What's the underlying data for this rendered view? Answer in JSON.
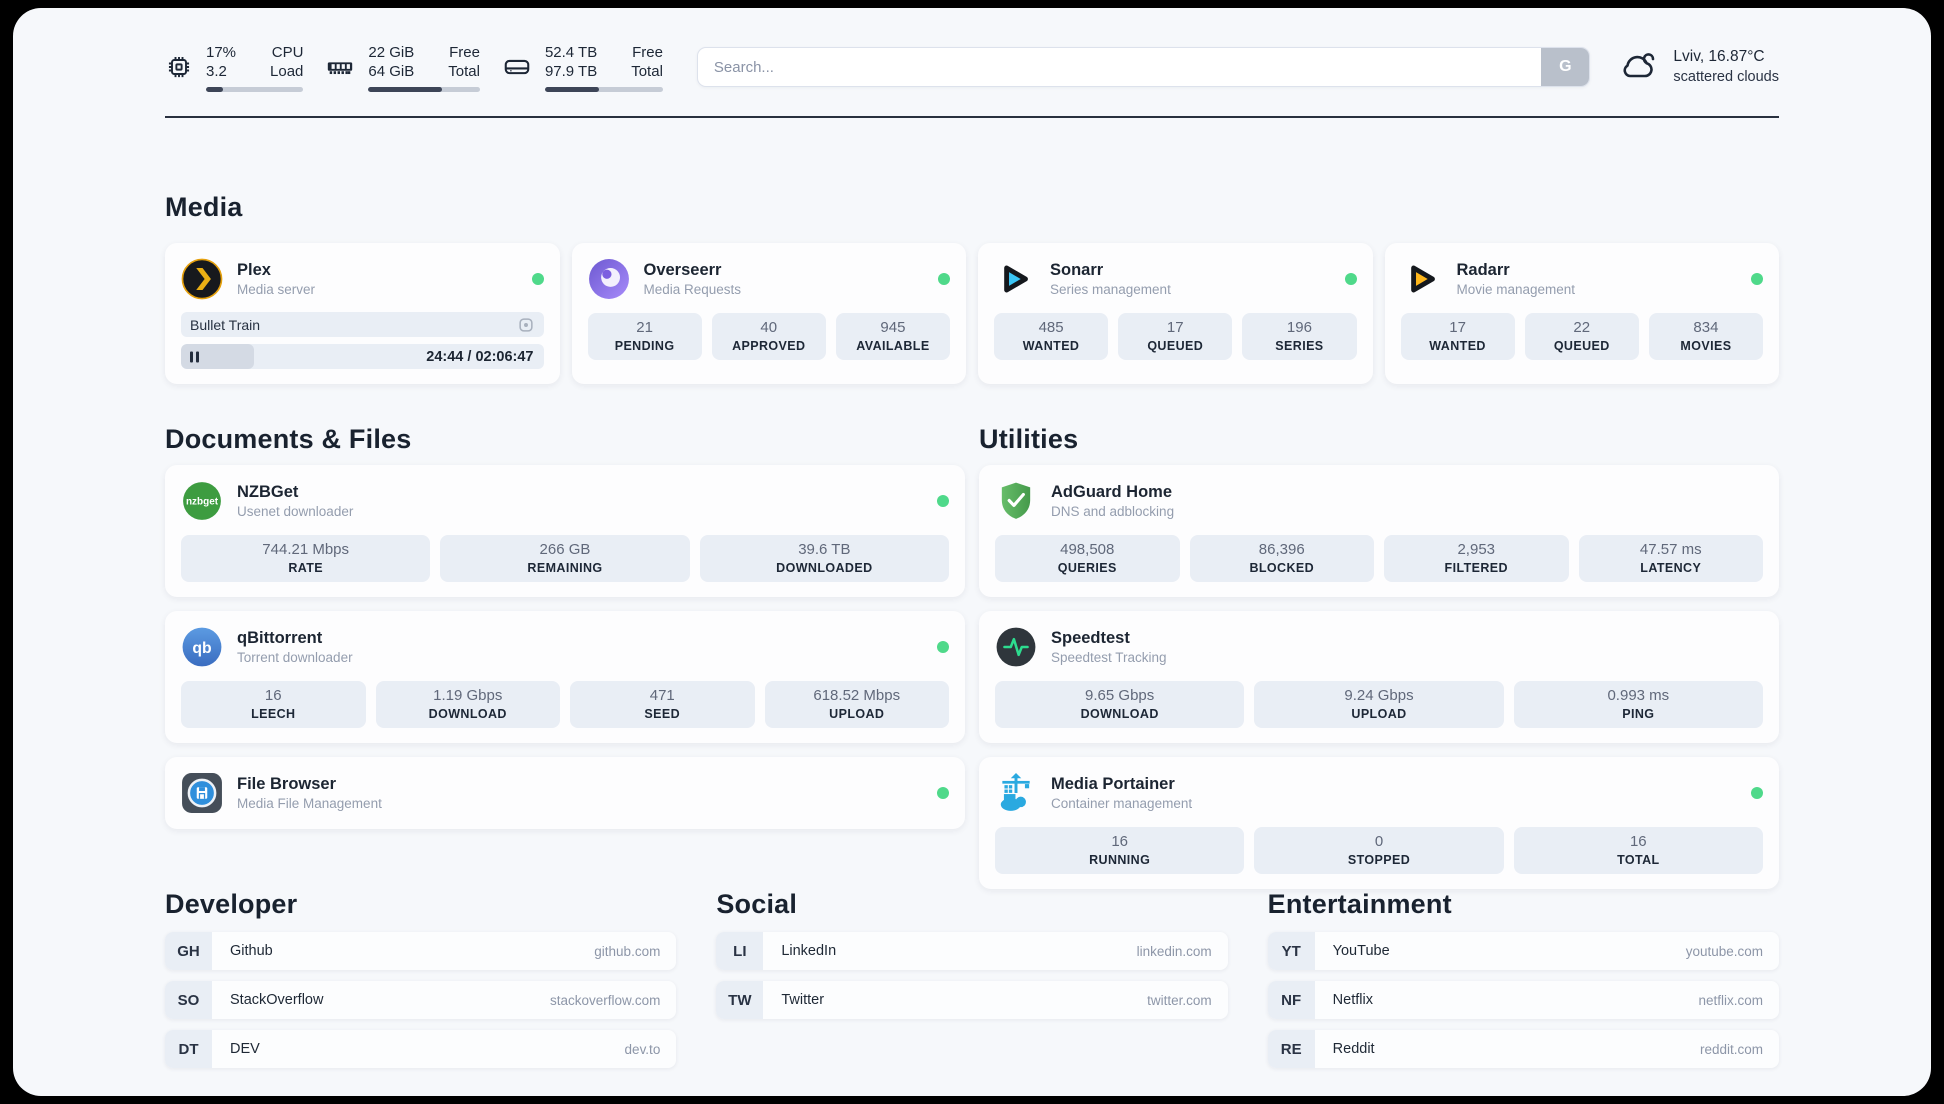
{
  "topbar": {
    "cpu": {
      "icon": "cpu-icon",
      "value1": "17%",
      "value2": "3.2",
      "label1": "CPU",
      "label2": "Load",
      "progress": 17
    },
    "memory": {
      "icon": "ram-icon",
      "value1": "22 GiB",
      "value2": "64 GiB",
      "label1": "Free",
      "label2": "Total",
      "progress": 66
    },
    "disk": {
      "icon": "disk-icon",
      "value1": "52.4 TB",
      "value2": "97.9 TB",
      "label1": "Free",
      "label2": "Total",
      "progress": 46
    },
    "search": {
      "placeholder": "Search...",
      "button_label": "G"
    },
    "weather": {
      "icon": "cloud-icon",
      "location_temp": "Lviv, 16.87°C",
      "condition": "scattered clouds"
    }
  },
  "colors": {
    "accent_green": "#4fd98a",
    "statbox": "#e9eef5",
    "text_dark": "#1d2736"
  },
  "groups": {
    "media": {
      "title": "Media",
      "apps": [
        {
          "icon": "plex-icon",
          "name": "Plex",
          "desc": "Media server",
          "online": true,
          "player": {
            "title": "Bullet Train",
            "elapsed": "24:44",
            "duration": "02:06:47",
            "progress": 20
          }
        },
        {
          "icon": "overseerr-icon",
          "name": "Overseerr",
          "desc": "Media Requests",
          "online": true,
          "stats": [
            {
              "value": "21",
              "label": "PENDING"
            },
            {
              "value": "40",
              "label": "APPROVED"
            },
            {
              "value": "945",
              "label": "AVAILABLE"
            }
          ]
        },
        {
          "icon": "sonarr-icon",
          "name": "Sonarr",
          "desc": "Series management",
          "online": true,
          "stats": [
            {
              "value": "485",
              "label": "WANTED"
            },
            {
              "value": "17",
              "label": "QUEUED"
            },
            {
              "value": "196",
              "label": "SERIES"
            }
          ]
        },
        {
          "icon": "radarr-icon",
          "name": "Radarr",
          "desc": "Movie management",
          "online": true,
          "stats": [
            {
              "value": "17",
              "label": "WANTED"
            },
            {
              "value": "22",
              "label": "QUEUED"
            },
            {
              "value": "834",
              "label": "MOVIES"
            }
          ]
        }
      ]
    },
    "documents": {
      "title": "Documents & Files",
      "apps": [
        {
          "icon": "nzbget-icon",
          "name": "NZBGet",
          "desc": "Usenet downloader",
          "online": true,
          "stats": [
            {
              "value": "744.21 Mbps",
              "label": "RATE"
            },
            {
              "value": "266 GB",
              "label": "REMAINING"
            },
            {
              "value": "39.6 TB",
              "label": "DOWNLOADED"
            }
          ]
        },
        {
          "icon": "qbittorrent-icon",
          "name": "qBittorrent",
          "desc": "Torrent downloader",
          "online": true,
          "stats": [
            {
              "value": "16",
              "label": "LEECH"
            },
            {
              "value": "1.19 Gbps",
              "label": "DOWNLOAD"
            },
            {
              "value": "471",
              "label": "SEED"
            },
            {
              "value": "618.52 Mbps",
              "label": "UPLOAD"
            }
          ]
        },
        {
          "icon": "filebrowser-icon",
          "name": "File Browser",
          "desc": "Media File Management",
          "online": true
        }
      ]
    },
    "utilities": {
      "title": "Utilities",
      "apps": [
        {
          "icon": "adguard-icon",
          "name": "AdGuard Home",
          "desc": "DNS and adblocking",
          "online": false,
          "stats": [
            {
              "value": "498,508",
              "label": "QUERIES"
            },
            {
              "value": "86,396",
              "label": "BLOCKED"
            },
            {
              "value": "2,953",
              "label": "FILTERED"
            },
            {
              "value": "47.57 ms",
              "label": "LATENCY"
            }
          ]
        },
        {
          "icon": "speedtest-icon",
          "name": "Speedtest",
          "desc": "Speedtest Tracking",
          "online": false,
          "stats": [
            {
              "value": "9.65 Gbps",
              "label": "DOWNLOAD"
            },
            {
              "value": "9.24 Gbps",
              "label": "UPLOAD"
            },
            {
              "value": "0.993 ms",
              "label": "PING"
            }
          ]
        },
        {
          "icon": "portainer-icon",
          "name": "Media Portainer",
          "desc": "Container management",
          "online": true,
          "stats": [
            {
              "value": "16",
              "label": "RUNNING"
            },
            {
              "value": "0",
              "label": "STOPPED"
            },
            {
              "value": "16",
              "label": "TOTAL"
            }
          ]
        }
      ]
    }
  },
  "bookmarks": {
    "developer": {
      "title": "Developer",
      "items": [
        {
          "abbr": "GH",
          "name": "Github",
          "url": "github.com"
        },
        {
          "abbr": "SO",
          "name": "StackOverflow",
          "url": "stackoverflow.com"
        },
        {
          "abbr": "DT",
          "name": "DEV",
          "url": "dev.to"
        }
      ]
    },
    "social": {
      "title": "Social",
      "items": [
        {
          "abbr": "LI",
          "name": "LinkedIn",
          "url": "linkedin.com"
        },
        {
          "abbr": "TW",
          "name": "Twitter",
          "url": "twitter.com"
        }
      ]
    },
    "entertainment": {
      "title": "Entertainment",
      "items": [
        {
          "abbr": "YT",
          "name": "YouTube",
          "url": "youtube.com"
        },
        {
          "abbr": "NF",
          "name": "Netflix",
          "url": "netflix.com"
        },
        {
          "abbr": "RE",
          "name": "Reddit",
          "url": "reddit.com"
        }
      ]
    }
  }
}
